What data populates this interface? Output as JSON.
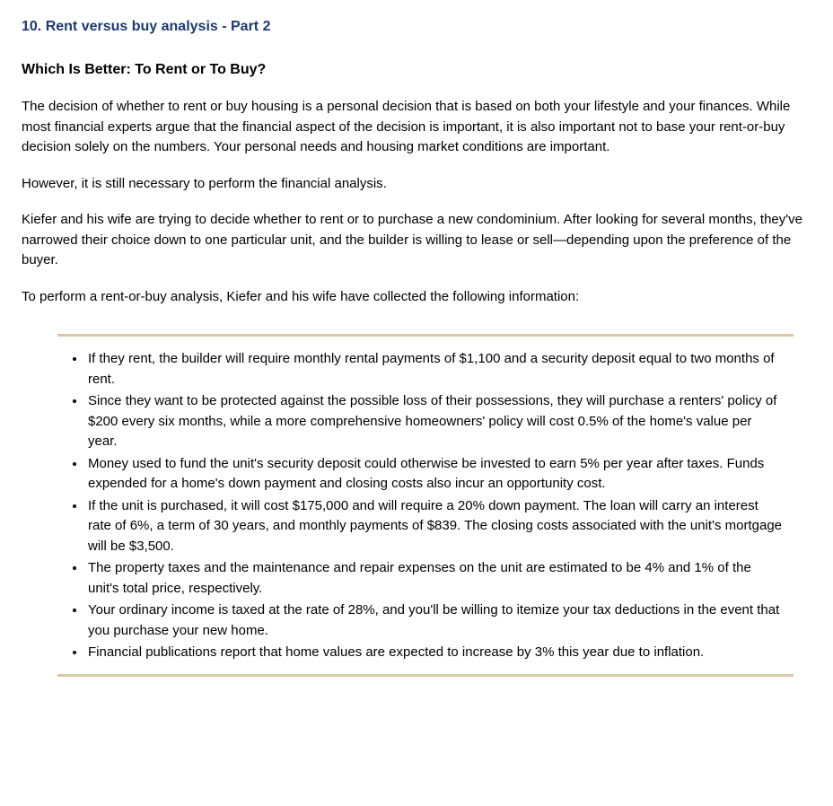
{
  "section": {
    "number": "10.",
    "title": "Rent versus buy analysis - Part 2"
  },
  "question_title": "Which Is Better: To Rent or To Buy?",
  "paragraphs": {
    "p1": "The decision of whether to rent or buy housing is a personal decision that is based on both your lifestyle and your finances. While most financial experts argue that the financial aspect of the decision is important, it is also important not to base your rent-or-buy decision solely on the numbers. Your personal needs and housing market conditions are important.",
    "p2": "However, it is still necessary to perform the financial analysis.",
    "p3": "Kiefer and his wife are trying to decide whether to rent or to purchase a new condominium. After looking for several months, they've narrowed their choice down to one particular unit, and the builder is willing to lease or sell—depending upon the preference of the buyer.",
    "p4": "To perform a rent-or-buy analysis, Kiefer and his wife have collected the following information:"
  },
  "bullets": {
    "b1": "If they rent, the builder will require monthly rental payments of $1,100 and a security deposit equal to two months of rent.",
    "b2": "Since they want to be protected against the possible loss of their possessions, they will purchase a renters' policy of $200 every six months, while a more comprehensive homeowners' policy will cost 0.5% of the home's value per year.",
    "b3": "Money used to fund the unit's security deposit could otherwise be invested to earn 5% per year after taxes. Funds expended for a home's down payment and closing costs also incur an opportunity cost.",
    "b4": "If the unit is purchased, it will cost $175,000 and will require a 20% down payment. The loan will carry an interest rate of 6%, a term of 30 years, and monthly payments of $839. The closing costs associated with the unit's mortgage will be $3,500.",
    "b5": "The property taxes and the maintenance and repair expenses on the unit are estimated to be 4% and 1% of the unit's total price, respectively.",
    "b6": "Your ordinary income is taxed at the rate of 28%, and you'll be willing to itemize your tax deductions in the event that you purchase your new home.",
    "b7": "Financial publications report that home values are expected to increase by 3% this year due to inflation."
  },
  "colors": {
    "title_color": "#1f3a6e",
    "body_text": "#000000",
    "background": "#ffffff",
    "box_border": "#d9caa5"
  },
  "typography": {
    "body_fontsize": 15,
    "title_fontsize": 16,
    "font_family": "Verdana"
  }
}
